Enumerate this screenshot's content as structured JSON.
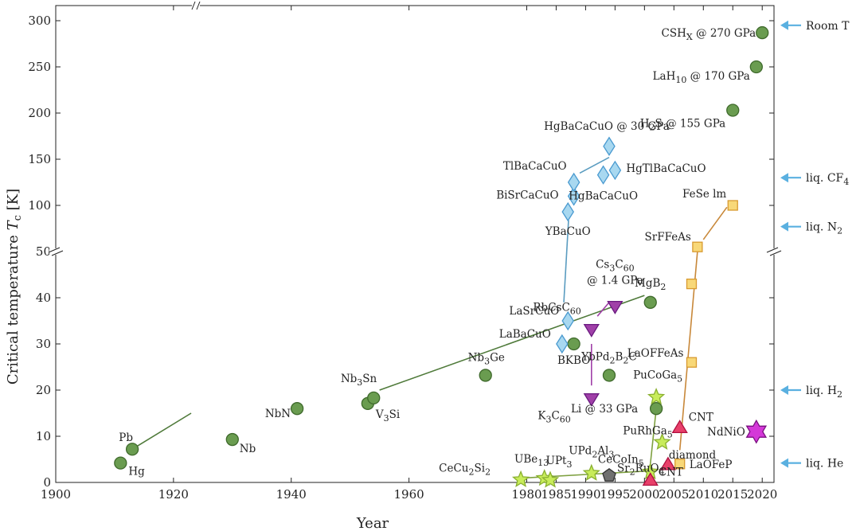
{
  "chart_data": {
    "type": "scatter",
    "title": "",
    "xlabel": "Year",
    "ylabel_prefix": "Critical temperature ",
    "ylabel_var": "T",
    "ylabel_sub": "c",
    "ylabel_unit": " [K]",
    "xlim": [
      1900,
      2022
    ],
    "y_scale": "broken: 0–50 K linear lower panel, 50–300 K compressed upper panel",
    "x_ticks": [
      1900,
      1920,
      1940,
      1960,
      1980,
      2000,
      2020
    ],
    "x_ticks_minor": [
      1980,
      1985,
      1990,
      1995,
      2005,
      2010,
      2015
    ],
    "y_ticks": [
      0,
      10,
      20,
      30,
      40,
      50,
      100,
      150,
      200,
      250,
      300
    ],
    "colors": {
      "bcs": "#6a9c50",
      "bcs_line": "#4f7a3a",
      "cuprate": "#a8d8f0",
      "cuprate_line": "#5a9cc0",
      "fulleride": "#a040a8",
      "heavy_fermion": "#c8ec5a",
      "iron": "#f8d878",
      "iron_line": "#c8883a",
      "carbon": "#e8406a",
      "nickelate": "#d438d8",
      "ruthenate": "#707070",
      "arrow": "#5ab0e0"
    },
    "series": [
      {
        "family": "BCS",
        "marker": "circle",
        "points": [
          {
            "name": "Hg",
            "x": 1911,
            "y": 4.2
          },
          {
            "name": "Pb",
            "x": 1913,
            "y": 7.2
          },
          {
            "name": "Nb",
            "x": 1930,
            "y": 9.3
          },
          {
            "name": "NbN",
            "x": 1941,
            "y": 16
          },
          {
            "name": "V3Si",
            "x": 1953,
            "y": 17.1
          },
          {
            "name": "Nb3Sn",
            "x": 1954,
            "y": 18.3
          },
          {
            "name": "Nb3Ge",
            "x": 1973,
            "y": 23.2
          },
          {
            "name": "BKBO",
            "x": 1988,
            "y": 30
          },
          {
            "name": "YbPd2B2C",
            "x": 1994,
            "y": 23.2
          },
          {
            "name": "MgB2",
            "x": 2001,
            "y": 39
          },
          {
            "name": "Li @ 33 GPa",
            "x": 2002,
            "y": 16
          },
          {
            "name": "H2S @ 155 GPa",
            "x": 2015,
            "y": 203
          },
          {
            "name": "LaH10 @ 170 GPa",
            "x": 2019,
            "y": 250
          },
          {
            "name": "CSHX @ 270 GPa",
            "x": 2020,
            "y": 287
          }
        ]
      },
      {
        "family": "Cuprate",
        "marker": "diamond",
        "points": [
          {
            "name": "LaBaCuO",
            "x": 1986,
            "y": 30
          },
          {
            "name": "LaSrCuO",
            "x": 1987,
            "y": 35
          },
          {
            "name": "YBaCuO",
            "x": 1987,
            "y": 93
          },
          {
            "name": "BiSrCaCuO",
            "x": 1988,
            "y": 110
          },
          {
            "name": "TlBaCaCuO",
            "x": 1988,
            "y": 125
          },
          {
            "name": "HgBaCaCuO",
            "x": 1993,
            "y": 133
          },
          {
            "name": "HgBaCaCuO @ 30 GPa",
            "x": 1994,
            "y": 164
          },
          {
            "name": "HgTlBaCaCuO",
            "x": 1995,
            "y": 138
          }
        ]
      },
      {
        "family": "Fulleride",
        "marker": "triangle-down",
        "points": [
          {
            "name": "K3C60",
            "x": 1991,
            "y": 18
          },
          {
            "name": "RbCsC60",
            "x": 1991,
            "y": 33
          },
          {
            "name": "Cs3C60 @ 1.4 GPa",
            "x": 1995,
            "y": 38
          }
        ]
      },
      {
        "family": "Heavy fermion",
        "marker": "star",
        "points": [
          {
            "name": "CeCu2Si2",
            "x": 1979,
            "y": 0.6
          },
          {
            "name": "UBe13",
            "x": 1983,
            "y": 0.9
          },
          {
            "name": "UPt3",
            "x": 1984,
            "y": 0.5
          },
          {
            "name": "UPd2Al3",
            "x": 1991,
            "y": 2
          },
          {
            "name": "CeCoIn5",
            "x": 2001,
            "y": 2.3
          },
          {
            "name": "PuCoGa5",
            "x": 2002,
            "y": 18.5
          },
          {
            "name": "PuRhGa5",
            "x": 2003,
            "y": 8.7
          }
        ]
      },
      {
        "family": "Iron-based",
        "marker": "square",
        "points": [
          {
            "name": "LaOFeP",
            "x": 2006,
            "y": 4
          },
          {
            "name": "LaOFFeAs",
            "x": 2008,
            "y": 26
          },
          {
            "name": "",
            "x": 2008,
            "y": 43
          },
          {
            "name": "SrFFeAs",
            "x": 2009,
            "y": 55
          },
          {
            "name": "FeSe lm",
            "x": 2015,
            "y": 100
          }
        ]
      },
      {
        "family": "Carbon",
        "marker": "triangle-up",
        "points": [
          {
            "name": "CNT",
            "x": 2001,
            "y": 0.6
          },
          {
            "name": "diamond",
            "x": 2004,
            "y": 4
          },
          {
            "name": "CNT",
            "x": 2006,
            "y": 12
          }
        ]
      },
      {
        "family": "Nickelate",
        "marker": "hexagram",
        "points": [
          {
            "name": "NdNiO",
            "x": 2019,
            "y": 11
          }
        ]
      },
      {
        "family": "Ruthenate",
        "marker": "pentagon",
        "points": [
          {
            "name": "Sr2RuO4",
            "x": 1994,
            "y": 1.5
          }
        ]
      }
    ],
    "reference_lines": [
      {
        "label": "Room T",
        "y": 295
      },
      {
        "label_main": "liq. CF",
        "label_sub": "4",
        "y": 130
      },
      {
        "label_main": "liq. N",
        "label_sub": "2",
        "y": 77
      },
      {
        "label_main": "liq. H",
        "label_sub": "2",
        "y": 20
      },
      {
        "label": "liq. He",
        "y": 4.2
      }
    ]
  }
}
